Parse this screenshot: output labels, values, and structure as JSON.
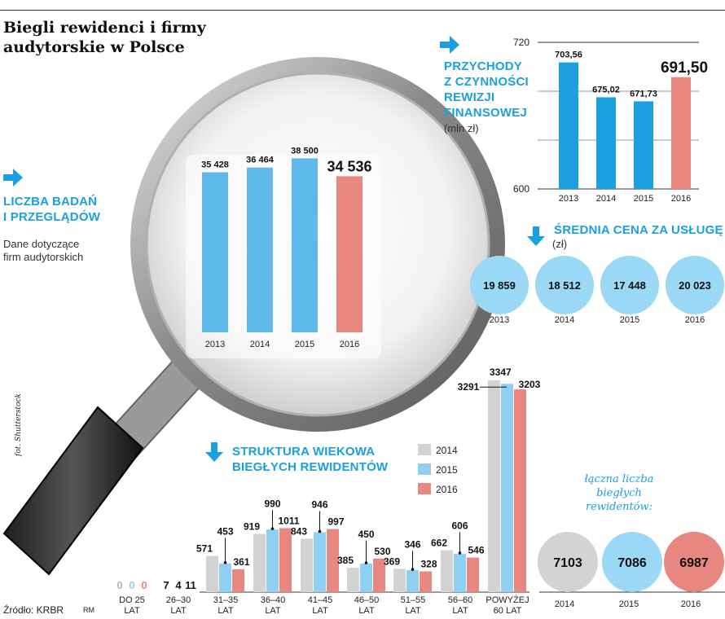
{
  "title": "Biegli rewidenci i firmy audytorskie w Polsce",
  "colors": {
    "blue": "#1aa0e0",
    "light_blue": "#8fd0f2",
    "gray": "#d3d3d3",
    "salmon": "#e8877f",
    "circle_blue": "#9ad8f5"
  },
  "sections": {
    "audits": {
      "title_line1": "LICZBA BADAŃ",
      "title_line2": "I PRZEGLĄDÓW",
      "note_line1": "Dane dotyczące",
      "note_line2": "firm audytorskich"
    },
    "revenue": {
      "title_line1": "PRZYCHODY",
      "title_line2": "Z CZYNNOŚCI",
      "title_line3": "REWIZJI",
      "title_line4": "FINANSOWEJ",
      "unit": "(mln zł)"
    },
    "price": {
      "title": "ŚREDNIA CENA ZA USŁUGĘ",
      "unit": "(zł)"
    },
    "age": {
      "title_line1": "STRUKTURA WIEKOWA",
      "title_line2": "BIEGŁYCH REWIDENTÓW"
    },
    "total": {
      "line1": "łączna liczba",
      "line2": "biegłych",
      "line3": "rewidentów:"
    }
  },
  "chart_data": [
    {
      "id": "audits",
      "type": "bar",
      "title": "LICZBA BADAŃ I PRZEGLĄDÓW",
      "categories": [
        "2013",
        "2014",
        "2015",
        "2016"
      ],
      "values": [
        35428,
        36464,
        38500,
        34536
      ],
      "value_labels": [
        "35 428",
        "36 464",
        "38 500",
        "34 536"
      ],
      "ylim": [
        0,
        42000
      ]
    },
    {
      "id": "revenue",
      "type": "bar",
      "title": "PRZYCHODY Z CZYNNOŚCI REWIZJI FINANSOWEJ",
      "ylabel": "(mln zł)",
      "categories": [
        "2013",
        "2014",
        "2015",
        "2016"
      ],
      "values": [
        703.56,
        675.02,
        671.73,
        691.5
      ],
      "value_labels": [
        "703,56",
        "675,02",
        "671,73",
        "691,50"
      ],
      "ylim": [
        600,
        720
      ],
      "yticks": [
        "720",
        "600"
      ]
    },
    {
      "id": "avg_price",
      "type": "bubble",
      "title": "ŚREDNIA CENA ZA USŁUGĘ",
      "ylabel": "(zł)",
      "categories": [
        "2013",
        "2014",
        "2015",
        "2016"
      ],
      "values": [
        19859,
        18512,
        17448,
        20023
      ],
      "value_labels": [
        "19 859",
        "18 512",
        "17 448",
        "20 023"
      ]
    },
    {
      "id": "age_structure",
      "type": "bar",
      "title": "STRUKTURA WIEKOWA BIEGŁYCH REWIDENTÓW",
      "categories": [
        "DO 25 LAT",
        "26-30 LAT",
        "31-35 LAT",
        "36-40 LAT",
        "41-45 LAT",
        "46-50 LAT",
        "51-55 LAT",
        "56-60 LAT",
        "POWYŻEJ 60 LAT"
      ],
      "category_lines": [
        [
          "DO 25",
          "LAT"
        ],
        [
          "26–30",
          "LAT"
        ],
        [
          "31–35",
          "LAT"
        ],
        [
          "36–40",
          "LAT"
        ],
        [
          "41–45",
          "LAT"
        ],
        [
          "46–50",
          "LAT"
        ],
        [
          "51–55",
          "LAT"
        ],
        [
          "56–60",
          "LAT"
        ],
        [
          "POWYŻEJ",
          "60 LAT"
        ]
      ],
      "series": [
        {
          "name": "2014",
          "values": [
            0,
            7,
            571,
            919,
            843,
            385,
            369,
            662,
            3347
          ]
        },
        {
          "name": "2015",
          "values": [
            0,
            4,
            453,
            990,
            946,
            450,
            346,
            606,
            3291
          ]
        },
        {
          "name": "2016",
          "values": [
            0,
            11,
            361,
            1011,
            997,
            530,
            328,
            546,
            3203
          ]
        }
      ],
      "legend": "top-right"
    },
    {
      "id": "total",
      "type": "bubble",
      "title": "łączna liczba biegłych rewidentów:",
      "categories": [
        "2014",
        "2015",
        "2016"
      ],
      "values": [
        7103,
        7086,
        6987
      ]
    }
  ],
  "footer": {
    "source": "Źródło: KRBR",
    "author": "RM",
    "photo": "fot. Shutterstock"
  }
}
